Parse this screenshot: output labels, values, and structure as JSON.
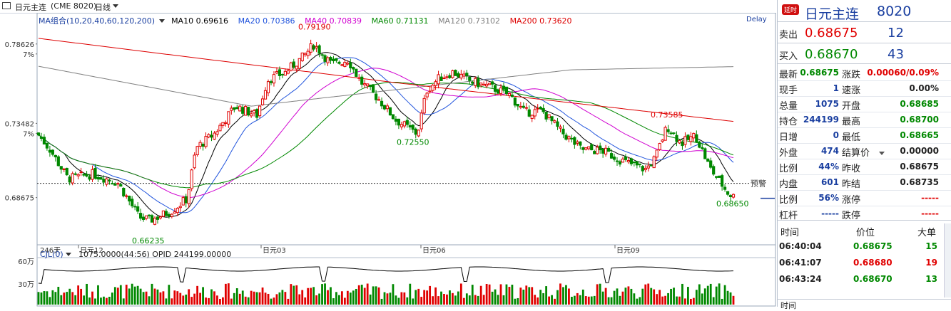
{
  "top_bar": {
    "icon": "window-icon",
    "symbol": "日元主连",
    "code": "(CME 8020)",
    "period": "日线",
    "delay": "Delay"
  },
  "indicator_line": {
    "group": "MA组合(10,20,40,60,120,200)",
    "ma10": "MA10 0.69616",
    "ma20": "MA20 0.70386",
    "ma40": "MA40 0.70839",
    "ma60": "MA60 0.71131",
    "ma120": "MA120 0.73102",
    "ma200": "MA200 0.73620"
  },
  "colors": {
    "ma10": "#000000",
    "ma20": "#2255dd",
    "ma40": "#d000d0",
    "ma60": "#008800",
    "ma120": "#808080",
    "ma200": "#dd0000",
    "up": "#e00000",
    "down": "#008800",
    "vol_line": "#000000"
  },
  "chart_data": {
    "type": "candlestick",
    "price_ticks": [
      "0.78626",
      "7%",
      "0.73482",
      "7%",
      "0.68675"
    ],
    "x_labels": [
      "246天",
      "日元12",
      "日元03",
      "日元06",
      "日元09"
    ],
    "annotations": [
      "0.79190",
      "0.72550",
      "0.73585",
      "0.66235",
      "0.68650"
    ],
    "alert_label": "预警",
    "last_price": 0.68675,
    "high": 0.7919,
    "low": 0.66235,
    "volume_panel": {
      "title": "CJL(0)",
      "readout": "1075.0000(44:56)  OPID 244199.00000",
      "ticks": [
        "60万",
        "30万"
      ]
    }
  },
  "quote": {
    "badge": "延时",
    "title": "日元主连",
    "code": "8020",
    "sell_label": "卖出",
    "sell_price": "0.68675",
    "sell_qty": "12",
    "buy_label": "买入",
    "buy_price": "0.68670",
    "buy_qty": "43",
    "rows": [
      {
        "l1": "最新",
        "v1": "0.68675",
        "c1": "green",
        "l2": "涨跌",
        "v2": "0.00060/0.09%",
        "c2": "red"
      },
      {
        "l1": "现手",
        "v1": "1",
        "c1": "blue",
        "l2": "速涨",
        "v2": "0.00%",
        "c2": "black"
      },
      {
        "l1": "总量",
        "v1": "1075",
        "c1": "blue",
        "l2": "开盘",
        "v2": "0.68685",
        "c2": "green"
      },
      {
        "l1": "持仓",
        "v1": "244199",
        "c1": "blue",
        "l2": "最高",
        "v2": "0.68700",
        "c2": "green"
      },
      {
        "l1": "日增",
        "v1": "0",
        "c1": "blue",
        "l2": "最低",
        "v2": "0.68665",
        "c2": "green"
      },
      {
        "l1": "外盘",
        "v1": "474",
        "c1": "blue",
        "l2": "结算价",
        "v2": "0.00000",
        "c2": "black"
      },
      {
        "l1": "比例",
        "v1": "44%",
        "c1": "blue",
        "l2": "昨收",
        "v2": "0.68675",
        "c2": "black"
      },
      {
        "l1": "内盘",
        "v1": "601",
        "c1": "blue",
        "l2": "昨结",
        "v2": "0.68735",
        "c2": "black"
      },
      {
        "l1": "比例",
        "v1": "56%",
        "c1": "blue",
        "l2": "涨停",
        "v2": "-----",
        "c2": "dash"
      },
      {
        "l1": "杠杆",
        "v1": "-----",
        "c1": "blue",
        "l2": "跌停",
        "v2": "-----",
        "c2": "dash"
      }
    ],
    "ticks_header": {
      "time": "时间",
      "price": "价位",
      "lots": "大单"
    },
    "ticks": [
      {
        "time": "06:40:04",
        "price": "0.68675",
        "lots": "15",
        "c": "green"
      },
      {
        "time": "06:41:07",
        "price": "0.68680",
        "lots": "19",
        "c": "red"
      },
      {
        "time": "06:43:24",
        "price": "0.68670",
        "lots": "13",
        "c": "green"
      }
    ],
    "bottom_stub": "时间"
  }
}
